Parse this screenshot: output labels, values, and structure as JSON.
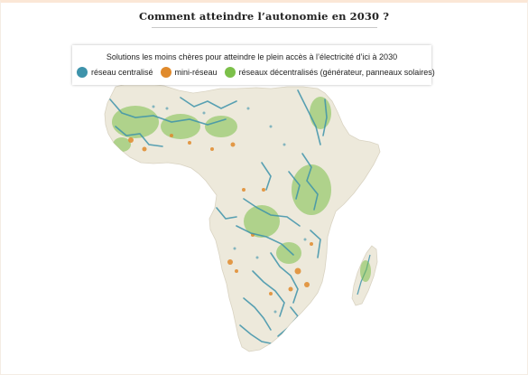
{
  "header": {
    "title": "Comment atteindre l’autonomie en 2030 ?"
  },
  "legend": {
    "title": "Solutions les moins chères pour atteindre le plein accès à l’électricité d’ici à 2030",
    "items": [
      {
        "label": "réseau centralisé",
        "color": "#3e93ab",
        "icon": "blue-dot"
      },
      {
        "label": "mini-réseau",
        "color": "#e08a2c",
        "icon": "orange-dot"
      },
      {
        "label": "réseaux décentralisés (générateur, panneaux solaires)",
        "color": "#7cc04a",
        "icon": "green-dot"
      }
    ]
  },
  "map": {
    "land_color": "#ede9db",
    "background_color": "#ffffff"
  }
}
